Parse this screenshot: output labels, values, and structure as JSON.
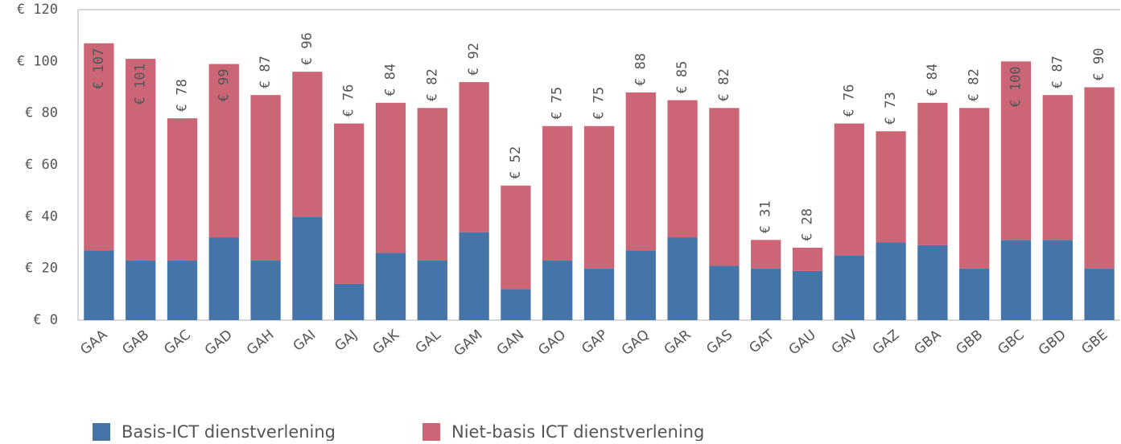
{
  "chart_data": {
    "type": "stacked_bar",
    "categories": [
      "GAA",
      "GAB",
      "GAC",
      "GAD",
      "GAH",
      "GAI",
      "GAJ",
      "GAK",
      "GAL",
      "GAM",
      "GAN",
      "GAO",
      "GAP",
      "GAQ",
      "GAR",
      "GAS",
      "GAT",
      "GAU",
      "GAV",
      "GAZ",
      "GBA",
      "GBB",
      "GBC",
      "GBD",
      "GBE"
    ],
    "series": [
      {
        "name": "Basis-ICT dienstverlening",
        "color": "#4575a8",
        "values": [
          27,
          23,
          23,
          32,
          23,
          40,
          14,
          26,
          23,
          34,
          12,
          23,
          20,
          27,
          32,
          21,
          20,
          19,
          25,
          30,
          29,
          20,
          31,
          31,
          20
        ]
      },
      {
        "name": "Niet-basis ICT dienstverlening",
        "color": "#cc6677",
        "values": [
          80,
          78,
          55,
          67,
          64,
          56,
          62,
          58,
          59,
          58,
          40,
          52,
          55,
          61,
          53,
          61,
          11,
          9,
          51,
          43,
          55,
          62,
          69,
          56,
          70
        ]
      }
    ],
    "total_labels": [
      "€ 107",
      "€ 101",
      "€ 78",
      "€ 99",
      "€ 87",
      "€ 96",
      "€ 76",
      "€ 84",
      "€ 82",
      "€ 92",
      "€ 52",
      "€ 75",
      "€ 75",
      "€ 88",
      "€ 85",
      "€ 82",
      "€ 31",
      "€ 28",
      "€ 76",
      "€ 73",
      "€ 84",
      "€ 82",
      "€ 100",
      "€ 87",
      "€ 90"
    ],
    "ylim": [
      0,
      120
    ],
    "yticks": [
      {
        "value": 0,
        "label": "€ 0"
      },
      {
        "value": 20,
        "label": "€ 20"
      },
      {
        "value": 40,
        "label": "€ 40"
      },
      {
        "value": 60,
        "label": "€ 60"
      },
      {
        "value": 80,
        "label": "€ 80"
      },
      {
        "value": 100,
        "label": "€ 100"
      },
      {
        "value": 120,
        "label": "€ 120"
      }
    ],
    "grid": false,
    "legend": "bottom-left"
  }
}
